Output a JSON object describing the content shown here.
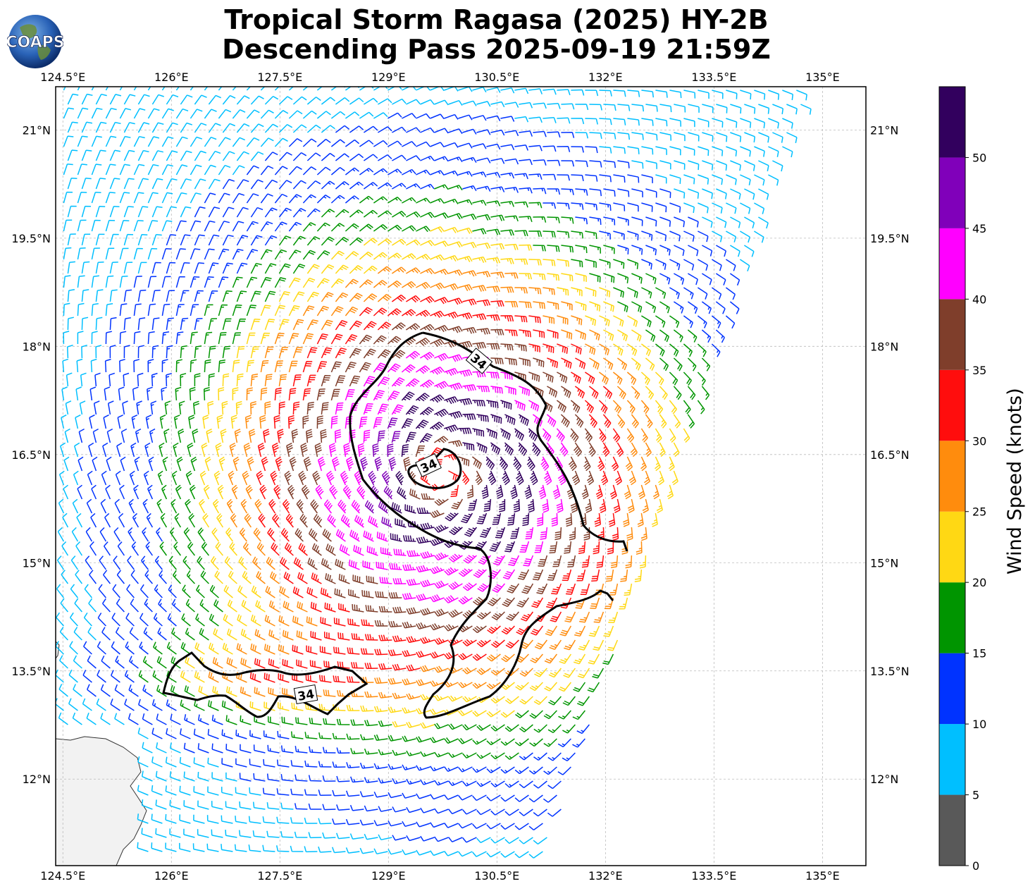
{
  "title_line1": "Tropical Storm Ragasa (2025) HY-2B",
  "title_line2": "Descending Pass 2025-09-19 21:59Z",
  "logo_text": "COAPS",
  "colorbar_label": "Wind Speed (knots)",
  "contour_label": "34",
  "map": {
    "lon_ticks": [
      "124.5°E",
      "126°E",
      "127.5°E",
      "129°E",
      "130.5°E",
      "132°E",
      "133.5°E",
      "135°E"
    ],
    "lat_ticks": [
      "21°N",
      "19.5°N",
      "18°N",
      "16.5°N",
      "15°N",
      "13.5°N",
      "12°N"
    ],
    "lon_range": [
      124.4,
      135.6
    ],
    "lat_range": [
      10.8,
      21.6
    ],
    "projection": "PlateCarree",
    "grid": "dashed"
  },
  "colorbar": {
    "bins": [
      {
        "from": 0,
        "to": 5,
        "color": "#595959"
      },
      {
        "from": 5,
        "to": 10,
        "color": "#00bfff"
      },
      {
        "from": 10,
        "to": 15,
        "color": "#0033ff"
      },
      {
        "from": 15,
        "to": 20,
        "color": "#009500"
      },
      {
        "from": 20,
        "to": 25,
        "color": "#ffd814"
      },
      {
        "from": 25,
        "to": 30,
        "color": "#ff8c0d"
      },
      {
        "from": 30,
        "to": 35,
        "color": "#ff0d0d"
      },
      {
        "from": 35,
        "to": 40,
        "color": "#7f3e2b"
      },
      {
        "from": 40,
        "to": 45,
        "color": "#ff00ff"
      },
      {
        "from": 45,
        "to": 50,
        "color": "#8000ba"
      },
      {
        "from": 50,
        "to": 55,
        "color": "#32005e"
      }
    ],
    "tick_labels": [
      "0",
      "5",
      "10",
      "15",
      "20",
      "25",
      "30",
      "35",
      "40",
      "45",
      "50"
    ]
  },
  "storm": {
    "center_lon": 129.75,
    "center_lat": 16.2
  }
}
